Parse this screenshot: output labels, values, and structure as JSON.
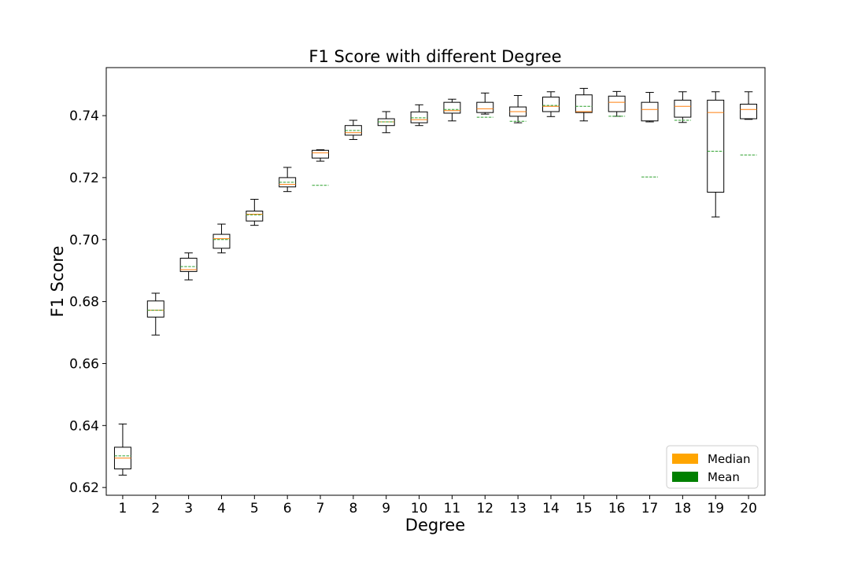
{
  "chart_data": {
    "type": "boxplot",
    "title": "F1 Score with different Degree",
    "xlabel": "Degree",
    "ylabel": "F1 Score",
    "ylim": [
      0.6175,
      0.7555
    ],
    "y_ticks": [
      "0.62",
      "0.64",
      "0.66",
      "0.68",
      "0.70",
      "0.72",
      "0.74"
    ],
    "y_tick_values": [
      0.62,
      0.64,
      0.66,
      0.68,
      0.7,
      0.72,
      0.74
    ],
    "grid": false,
    "legend_position": "lower-right",
    "legend": [
      {
        "label": "Median",
        "color": "#ffa500"
      },
      {
        "label": "Mean",
        "color": "#008000"
      }
    ],
    "colors": {
      "median": "#ff7f0e",
      "mean": "#2ca02c",
      "box": "#000000"
    },
    "categories": [
      "1",
      "2",
      "3",
      "4",
      "5",
      "6",
      "7",
      "8",
      "9",
      "10",
      "11",
      "12",
      "13",
      "14",
      "15",
      "16",
      "17",
      "18",
      "19",
      "20"
    ],
    "boxes": [
      {
        "whislo": 0.624,
        "q1": 0.626,
        "med": 0.6295,
        "q3": 0.633,
        "whishi": 0.6405,
        "mean": 0.6302
      },
      {
        "whislo": 0.6692,
        "q1": 0.675,
        "med": 0.6772,
        "q3": 0.6802,
        "whishi": 0.6827,
        "mean": 0.6772
      },
      {
        "whislo": 0.687,
        "q1": 0.6897,
        "med": 0.6903,
        "q3": 0.694,
        "whishi": 0.6957,
        "mean": 0.6913
      },
      {
        "whislo": 0.6957,
        "q1": 0.6972,
        "med": 0.7003,
        "q3": 0.7017,
        "whishi": 0.705,
        "mean": 0.7
      },
      {
        "whislo": 0.7046,
        "q1": 0.706,
        "med": 0.7082,
        "q3": 0.7092,
        "whishi": 0.713,
        "mean": 0.708
      },
      {
        "whislo": 0.7155,
        "q1": 0.717,
        "med": 0.7178,
        "q3": 0.72,
        "whishi": 0.7233,
        "mean": 0.7185
      },
      {
        "whislo": 0.7253,
        "q1": 0.7263,
        "med": 0.728,
        "q3": 0.7288,
        "whishi": 0.729,
        "mean": 0.7175
      },
      {
        "whislo": 0.7323,
        "q1": 0.7337,
        "med": 0.7345,
        "q3": 0.7368,
        "whishi": 0.7385,
        "mean": 0.7352
      },
      {
        "whislo": 0.7345,
        "q1": 0.7368,
        "med": 0.738,
        "q3": 0.739,
        "whishi": 0.7413,
        "mean": 0.738
      },
      {
        "whislo": 0.7368,
        "q1": 0.7377,
        "med": 0.7387,
        "q3": 0.7412,
        "whishi": 0.7435,
        "mean": 0.7393
      },
      {
        "whislo": 0.7383,
        "q1": 0.7408,
        "med": 0.7416,
        "q3": 0.7443,
        "whishi": 0.7453,
        "mean": 0.742
      },
      {
        "whislo": 0.7405,
        "q1": 0.741,
        "med": 0.7422,
        "q3": 0.7443,
        "whishi": 0.7473,
        "mean": 0.7395
      },
      {
        "whislo": 0.7377,
        "q1": 0.7398,
        "med": 0.7413,
        "q3": 0.7428,
        "whishi": 0.7465,
        "mean": 0.7382
      },
      {
        "whislo": 0.7397,
        "q1": 0.7413,
        "med": 0.743,
        "q3": 0.746,
        "whishi": 0.7477,
        "mean": 0.7433
      },
      {
        "whislo": 0.7383,
        "q1": 0.741,
        "med": 0.7413,
        "q3": 0.7467,
        "whishi": 0.7488,
        "mean": 0.743
      },
      {
        "whislo": 0.7398,
        "q1": 0.7413,
        "med": 0.7443,
        "q3": 0.7463,
        "whishi": 0.7478,
        "mean": 0.7398
      },
      {
        "whislo": 0.738,
        "q1": 0.7383,
        "med": 0.742,
        "q3": 0.7443,
        "whishi": 0.7475,
        "mean": 0.7202
      },
      {
        "whislo": 0.7378,
        "q1": 0.7395,
        "med": 0.743,
        "q3": 0.745,
        "whishi": 0.7477,
        "mean": 0.7385
      },
      {
        "whislo": 0.7073,
        "q1": 0.7153,
        "med": 0.741,
        "q3": 0.745,
        "whishi": 0.7477,
        "mean": 0.7285
      },
      {
        "whislo": 0.7388,
        "q1": 0.739,
        "med": 0.742,
        "q3": 0.7437,
        "whishi": 0.7477,
        "mean": 0.7273
      }
    ]
  }
}
